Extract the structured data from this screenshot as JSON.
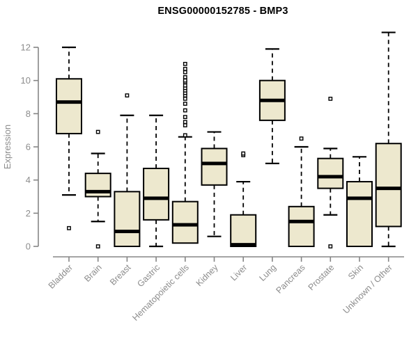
{
  "chart_data": {
    "type": "boxplot",
    "title": "ENSG00000152785 - BMP3",
    "xlabel": "",
    "ylabel": "Expression",
    "yticks": [
      0,
      2,
      4,
      6,
      8,
      10,
      12
    ],
    "ylim": [
      0,
      13
    ],
    "grid": false,
    "legend": "none",
    "categories": [
      "Bladder",
      "Brain",
      "Breast",
      "Gastric",
      "Hematopoietic cells",
      "Kidney",
      "Liver",
      "Lung",
      "Pancreas",
      "Prostate",
      "Skin",
      "Unknown / Other"
    ],
    "series": [
      {
        "name": "Bladder",
        "whisker_low": 3.1,
        "q1": 6.8,
        "median": 8.7,
        "q3": 10.1,
        "whisker_high": 12.0,
        "outliers": [
          1.1
        ]
      },
      {
        "name": "Brain",
        "whisker_low": 1.5,
        "q1": 3.0,
        "median": 3.3,
        "q3": 4.4,
        "whisker_high": 5.6,
        "outliers": [
          6.9,
          0.0
        ]
      },
      {
        "name": "Breast",
        "whisker_low": 0.0,
        "q1": 0.0,
        "median": 0.9,
        "q3": 3.3,
        "whisker_high": 7.9,
        "outliers": [
          9.1
        ]
      },
      {
        "name": "Gastric",
        "whisker_low": 0.0,
        "q1": 1.6,
        "median": 2.9,
        "q3": 4.7,
        "whisker_high": 7.9,
        "outliers": []
      },
      {
        "name": "Hematopoietic cells",
        "whisker_low": 0.2,
        "q1": 0.2,
        "median": 1.3,
        "q3": 2.7,
        "whisker_high": 6.6,
        "outliers": [
          6.7,
          7.3,
          7.5,
          7.8,
          8.2,
          8.6,
          8.9,
          9.1,
          9.25,
          9.4,
          9.55,
          9.7,
          9.9,
          10.0,
          10.2,
          10.5,
          10.7,
          11.0
        ]
      },
      {
        "name": "Kidney",
        "whisker_low": 0.6,
        "q1": 3.7,
        "median": 5.0,
        "q3": 5.9,
        "whisker_high": 6.9,
        "outliers": []
      },
      {
        "name": "Liver",
        "whisker_low": 0.0,
        "q1": 0.0,
        "median": 0.1,
        "q3": 1.9,
        "whisker_high": 3.9,
        "outliers": [
          5.5,
          5.6
        ]
      },
      {
        "name": "Lung",
        "whisker_low": 5.0,
        "q1": 7.6,
        "median": 8.8,
        "q3": 10.0,
        "whisker_high": 11.9,
        "outliers": []
      },
      {
        "name": "Pancreas",
        "whisker_low": 0.0,
        "q1": 0.0,
        "median": 1.5,
        "q3": 2.4,
        "whisker_high": 6.0,
        "outliers": [
          6.5
        ]
      },
      {
        "name": "Prostate",
        "whisker_low": 1.9,
        "q1": 3.5,
        "median": 4.2,
        "q3": 5.3,
        "whisker_high": 5.9,
        "outliers": [
          8.9,
          0.0
        ]
      },
      {
        "name": "Skin",
        "whisker_low": 0.0,
        "q1": 0.0,
        "median": 2.9,
        "q3": 3.9,
        "whisker_high": 5.4,
        "outliers": []
      },
      {
        "name": "Unknown / Other",
        "whisker_low": 0.0,
        "q1": 1.2,
        "median": 3.5,
        "q3": 6.2,
        "whisker_high": 12.9,
        "outliers": []
      }
    ],
    "colors": {
      "box_fill": "#ede8ce",
      "box_stroke": "#000000",
      "median": "#000000",
      "whisker": "#000000",
      "outlier_fill": "#ffffff",
      "outlier_stroke": "#000000",
      "axis": "#858585",
      "tick_label": "#8c8c8c",
      "title": "#000000"
    }
  }
}
